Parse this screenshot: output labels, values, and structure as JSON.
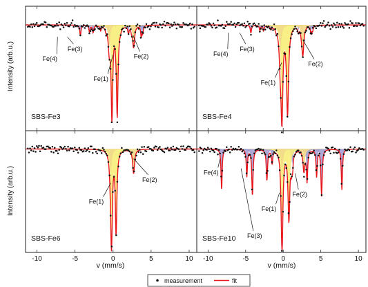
{
  "chart_data": {
    "type": "scatter",
    "xlabel": "v (mm/s)",
    "ylabel": "Intensity (arb.u.)",
    "xlim": [
      -11.5,
      11
    ],
    "xticks": [
      -10,
      -5,
      0,
      5,
      10
    ],
    "colors": {
      "measurement": "#111111",
      "fit": "#e8161b",
      "fe_sextet_fill": "#9f99cf",
      "fe_doublet_fill": "#f7ee7a",
      "fe2_fill": "#f2d98a"
    },
    "legend": {
      "placement": "bottom-center",
      "measurement_label": "measurement",
      "fit_label": "fit"
    },
    "panels": [
      {
        "name": "SBS-Fe3",
        "sextets": [
          {
            "label": "Fe(4)",
            "center": -0.3,
            "split": 8.0,
            "depth": 0.11,
            "width": 0.18
          },
          {
            "label": "Fe(3)",
            "center": 0.4,
            "split": 7.0,
            "depth": 0.07,
            "width": 0.18
          }
        ],
        "doublets": [
          {
            "label": "Fe(1)",
            "center": 0.2,
            "split": 0.7,
            "depth": 0.9,
            "width": 0.25
          },
          {
            "label": "Fe(2)",
            "center": 1.1,
            "split": 3.2,
            "depth": 0.22,
            "width": 0.3
          }
        ],
        "annotations": [
          {
            "text": "Fe(4)",
            "tx": -8.3,
            "ty": 0.44,
            "px": -7.3,
            "py": 0.12
          },
          {
            "text": "Fe(3)",
            "tx": -5.0,
            "ty": 0.36,
            "px": -6.0,
            "py": 0.12
          },
          {
            "text": "Fe(1)",
            "tx": -1.6,
            "ty": 0.6,
            "px": 0.0,
            "py": 0.3
          },
          {
            "text": "Fe(2)",
            "tx": 3.7,
            "ty": 0.42,
            "px": 2.6,
            "py": 0.1
          }
        ]
      },
      {
        "name": "SBS-Fe4",
        "sextets": [
          {
            "label": "Fe(4)",
            "center": -0.3,
            "split": 8.0,
            "depth": 0.08,
            "width": 0.18
          },
          {
            "label": "Fe(3)",
            "center": 0.4,
            "split": 7.0,
            "depth": 0.05,
            "width": 0.18
          }
        ],
        "doublets": [
          {
            "label": "Fe(1)",
            "center": 0.2,
            "split": 0.75,
            "depth": 0.88,
            "width": 0.3
          },
          {
            "label": "Fe(2)",
            "center": 1.1,
            "split": 3.0,
            "depth": 0.3,
            "width": 0.32
          }
        ],
        "annotations": [
          {
            "text": "Fe(4)",
            "tx": -8.3,
            "ty": 0.4,
            "px": -7.3,
            "py": 0.08
          },
          {
            "text": "Fe(3)",
            "tx": -4.8,
            "ty": 0.36,
            "px": -5.8,
            "py": 0.08
          },
          {
            "text": "Fe(1)",
            "tx": -2.0,
            "ty": 0.63,
            "px": -0.2,
            "py": 0.38
          },
          {
            "text": "Fe(2)",
            "tx": 4.3,
            "ty": 0.48,
            "px": 2.6,
            "py": 0.15
          }
        ]
      },
      {
        "name": "SBS-Fe6",
        "sextets": [],
        "doublets": [
          {
            "label": "Fe(1)",
            "center": 0.1,
            "split": 0.6,
            "depth": 0.85,
            "width": 0.25
          },
          {
            "label": "Fe(2)",
            "center": 1.2,
            "split": 3.0,
            "depth": 0.25,
            "width": 0.3
          }
        ],
        "annotations": [
          {
            "text": "Fe(1)",
            "tx": -2.2,
            "ty": 0.6,
            "px": -0.3,
            "py": 0.35
          },
          {
            "text": "Fe(2)",
            "tx": 4.8,
            "ty": 0.42,
            "px": 2.7,
            "py": 0.1
          }
        ]
      },
      {
        "name": "SBS-Fe10",
        "sextets": [
          {
            "label": "Fe(4)",
            "center": -0.2,
            "split": 16.0,
            "depth": 0.42,
            "width": 0.18
          },
          {
            "label": "Fe(3)",
            "center": 0.5,
            "split": 9.2,
            "depth": 0.48,
            "width": 0.2
          }
        ],
        "doublets": [
          {
            "label": "Fe(1)",
            "center": 0.3,
            "split": 0.9,
            "depth": 0.72,
            "width": 0.28
          },
          {
            "label": "Fe(2)",
            "center": 1.3,
            "split": 2.9,
            "depth": 0.22,
            "width": 0.3
          }
        ],
        "annotations": [
          {
            "text": "Fe(4)",
            "tx": -9.6,
            "ty": 0.36,
            "px": -8.4,
            "py": 0.1
          },
          {
            "text": "Fe(3)",
            "tx": -3.8,
            "ty": 0.88,
            "px": -5.6,
            "py": 0.2
          },
          {
            "text": "Fe(1)",
            "tx": -1.9,
            "ty": 0.66,
            "px": -0.5,
            "py": 0.45
          },
          {
            "text": "Fe(2)",
            "tx": 2.2,
            "ty": 0.54,
            "px": 1.6,
            "py": 0.25
          }
        ]
      }
    ]
  }
}
